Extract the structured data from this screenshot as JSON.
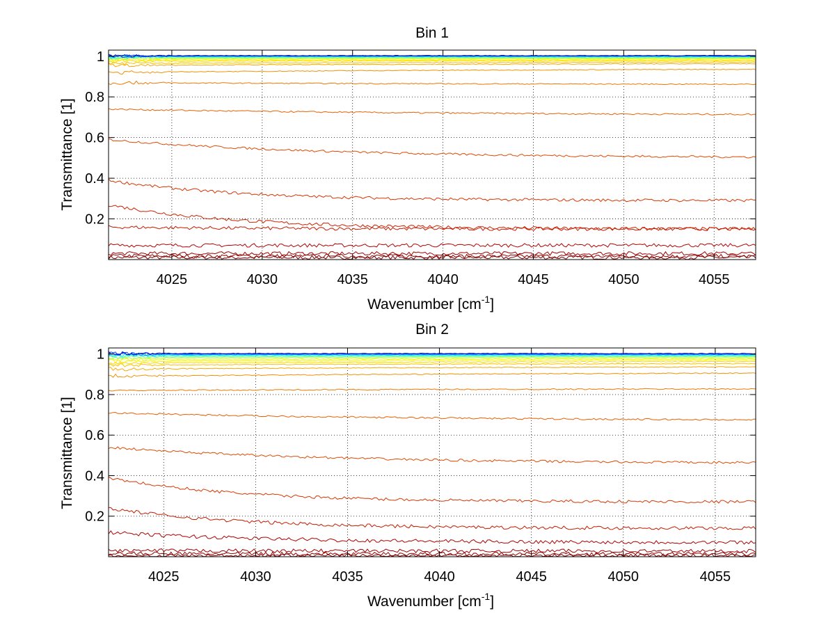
{
  "chart_data": [
    {
      "type": "line",
      "title": "Bin 1",
      "xlabel": {
        "base": "Wavenumber [cm",
        "sup": "-1",
        "close": "]"
      },
      "ylabel": "Transmittance [1]",
      "xlim": [
        4021.5,
        4057.3
      ],
      "ylim": [
        0.0,
        1.03
      ],
      "xticks": [
        4025,
        4030,
        4035,
        4040,
        4045,
        4050,
        4055
      ],
      "xtick_labels": [
        "4025",
        "4030",
        "4035",
        "4040",
        "4045",
        "4050",
        "4055"
      ],
      "yticks": [
        0.2,
        0.4,
        0.6,
        0.8,
        1.0
      ],
      "ytick_labels": [
        "0.2",
        "0.4",
        "0.6",
        "0.8",
        "1"
      ],
      "grid": true,
      "colormap": "jet",
      "series": [
        {
          "start": 0.01,
          "end": 0.01,
          "decay": 0,
          "color": "#800000"
        },
        {
          "start": 0.018,
          "end": 0.016,
          "decay": 2.5,
          "color": "#8f0000"
        },
        {
          "start": 0.03,
          "end": 0.03,
          "decay": 2.5,
          "color": "#a00000"
        },
        {
          "start": 0.07,
          "end": 0.07,
          "decay": 3,
          "color": "#b00000"
        },
        {
          "start": 0.16,
          "end": 0.15,
          "decay": 4,
          "color": "#c41a00"
        },
        {
          "start": 0.27,
          "end": 0.15,
          "decay": 5,
          "color": "#cc2000"
        },
        {
          "start": 0.39,
          "end": 0.29,
          "decay": 5,
          "color": "#d83400"
        },
        {
          "start": 0.59,
          "end": 0.5,
          "decay": 3,
          "color": "#e04800"
        },
        {
          "start": 0.74,
          "end": 0.71,
          "decay": 2,
          "color": "#e86000"
        },
        {
          "start": 0.87,
          "end": 0.86,
          "decay": 1.5,
          "color": "#ee7800"
        },
        {
          "start": 0.92,
          "end": 0.94,
          "decay": 1.5,
          "color": "#f49000"
        },
        {
          "start": 0.955,
          "end": 0.965,
          "decay": 1.5,
          "color": "#f8a800"
        },
        {
          "start": 0.965,
          "end": 0.972,
          "decay": 1.5,
          "color": "#fcc000"
        },
        {
          "start": 0.975,
          "end": 0.978,
          "decay": 1.5,
          "color": "#ffd800"
        },
        {
          "start": 0.98,
          "end": 0.983,
          "decay": 1.5,
          "color": "#fff000"
        },
        {
          "start": 0.985,
          "end": 0.987,
          "decay": 1.5,
          "color": "#e8ff10"
        },
        {
          "start": 0.99,
          "end": 0.99,
          "decay": 1.5,
          "color": "#b8ff40"
        },
        {
          "start": 0.993,
          "end": 0.993,
          "decay": 1.5,
          "color": "#80ff80"
        },
        {
          "start": 0.996,
          "end": 0.996,
          "decay": 1.5,
          "color": "#40ffc0"
        },
        {
          "start": 0.998,
          "end": 0.998,
          "decay": 1.5,
          "color": "#00e0ff"
        },
        {
          "start": 1.0,
          "end": 1.0,
          "decay": 1.5,
          "color": "#0090ff"
        },
        {
          "start": 1.002,
          "end": 1.002,
          "decay": 1.5,
          "color": "#0040ff"
        },
        {
          "start": 1.003,
          "end": 1.003,
          "decay": 1.5,
          "color": "#0000c0"
        }
      ]
    },
    {
      "type": "line",
      "title": "Bin 2",
      "xlabel": {
        "base": "Wavenumber [cm",
        "sup": "-1",
        "close": "]"
      },
      "ylabel": "Transmittance [1]",
      "xlim": [
        4022.0,
        4057.2
      ],
      "ylim": [
        0.0,
        1.03
      ],
      "xticks": [
        4025,
        4030,
        4035,
        4040,
        4045,
        4050,
        4055
      ],
      "xtick_labels": [
        "4025",
        "4030",
        "4035",
        "4040",
        "4045",
        "4050",
        "4055"
      ],
      "yticks": [
        0.2,
        0.4,
        0.6,
        0.8,
        1.0
      ],
      "ytick_labels": [
        "0.2",
        "0.4",
        "0.6",
        "0.8",
        "1"
      ],
      "grid": true,
      "colormap": "jet",
      "series": [
        {
          "start": 0.005,
          "end": 0.005,
          "decay": 0,
          "color": "#800000"
        },
        {
          "start": 0.015,
          "end": 0.013,
          "decay": 2.5,
          "color": "#8f0000"
        },
        {
          "start": 0.03,
          "end": 0.028,
          "decay": 2.5,
          "color": "#a00000"
        },
        {
          "start": 0.12,
          "end": 0.07,
          "decay": 4,
          "color": "#b00000"
        },
        {
          "start": 0.24,
          "end": 0.14,
          "decay": 5,
          "color": "#c41a00"
        },
        {
          "start": 0.39,
          "end": 0.27,
          "decay": 5,
          "color": "#d83400"
        },
        {
          "start": 0.54,
          "end": 0.46,
          "decay": 3,
          "color": "#e04800"
        },
        {
          "start": 0.71,
          "end": 0.67,
          "decay": 2,
          "color": "#e86000"
        },
        {
          "start": 0.82,
          "end": 0.83,
          "decay": 1.5,
          "color": "#ee7800"
        },
        {
          "start": 0.89,
          "end": 0.91,
          "decay": 1.5,
          "color": "#f49000"
        },
        {
          "start": 0.925,
          "end": 0.94,
          "decay": 1.5,
          "color": "#f8a800"
        },
        {
          "start": 0.945,
          "end": 0.955,
          "decay": 1.5,
          "color": "#fcc000"
        },
        {
          "start": 0.955,
          "end": 0.965,
          "decay": 1.5,
          "color": "#ffd800"
        },
        {
          "start": 0.965,
          "end": 0.972,
          "decay": 1.5,
          "color": "#fff000"
        },
        {
          "start": 0.972,
          "end": 0.978,
          "decay": 1.5,
          "color": "#e8ff10"
        },
        {
          "start": 0.98,
          "end": 0.983,
          "decay": 1.5,
          "color": "#b8ff40"
        },
        {
          "start": 0.985,
          "end": 0.988,
          "decay": 1.5,
          "color": "#80ff80"
        },
        {
          "start": 0.99,
          "end": 0.992,
          "decay": 1.5,
          "color": "#40ffc0"
        },
        {
          "start": 0.995,
          "end": 0.995,
          "decay": 1.5,
          "color": "#00e0ff"
        },
        {
          "start": 0.998,
          "end": 0.998,
          "decay": 1.5,
          "color": "#0090ff"
        },
        {
          "start": 1.001,
          "end": 1.0,
          "decay": 1.5,
          "color": "#0040ff"
        },
        {
          "start": 1.003,
          "end": 1.002,
          "decay": 1.5,
          "color": "#0000c0"
        }
      ]
    }
  ]
}
